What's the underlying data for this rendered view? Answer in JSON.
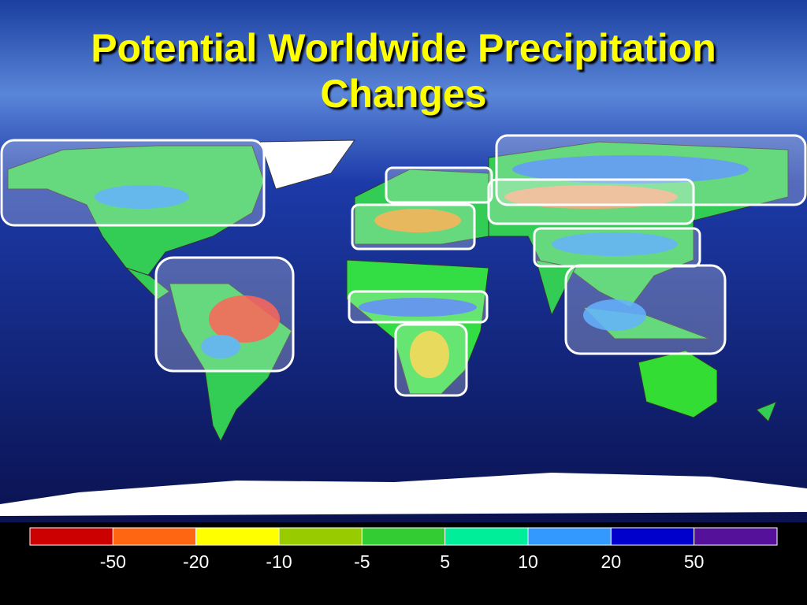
{
  "title_lines": [
    "Potential Worldwide Precipitation",
    "Changes"
  ],
  "legend": {
    "colors": [
      "#cc0000",
      "#ff6611",
      "#ffff00",
      "#99cc00",
      "#33cc33",
      "#00ee99",
      "#3399ff",
      "#0000cc",
      "#551199"
    ],
    "labels": [
      "-50",
      "-20",
      "-10",
      "-5",
      "5",
      "10",
      "20",
      "50"
    ]
  }
}
